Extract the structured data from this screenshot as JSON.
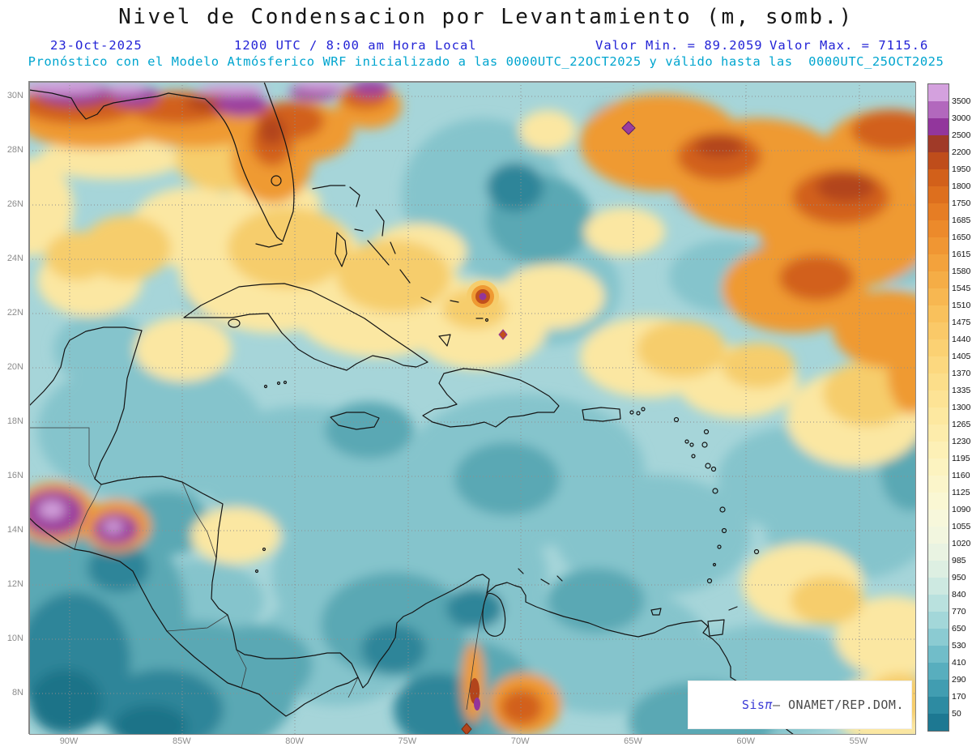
{
  "title": "Nivel de Condensacion por Levantamiento (m, somb.)",
  "header": {
    "date": "23-Oct-2025",
    "time_label": "1200 UTC / 8:00 am Hora Local",
    "valor_min": "Valor Min. = 89.2059",
    "valor_max": "Valor Max. = 7115.6",
    "forecast_line": "Pronóstico con el Modelo Atmósferico WRF inicializado a las 0000UTC_22OCT2025 y válido hasta las  0000UTC_25OCT2025"
  },
  "colors": {
    "title_text": "#161616",
    "header_blue": "#2323d6",
    "forecast_cyan": "#00a5cf",
    "axis_gray": "#8c8c8c",
    "ocean_base": "#a6d5d9"
  },
  "map": {
    "lat_ticks": [
      "30N",
      "28N",
      "26N",
      "24N",
      "22N",
      "20N",
      "18N",
      "16N",
      "14N",
      "12N",
      "10N",
      "8N"
    ],
    "lon_ticks": [
      "90W",
      "85W",
      "80W",
      "75W",
      "70W",
      "65W",
      "60W",
      "55W"
    ]
  },
  "colorbar": {
    "levels": [
      3500,
      3000,
      2500,
      2200,
      1950,
      1800,
      1750,
      1685,
      1650,
      1615,
      1580,
      1545,
      1510,
      1475,
      1440,
      1405,
      1370,
      1335,
      1300,
      1265,
      1230,
      1195,
      1160,
      1125,
      1090,
      1055,
      1020,
      985,
      950,
      840,
      770,
      650,
      530,
      410,
      290,
      170,
      50
    ],
    "colors": [
      "#d4a1de",
      "#b268bd",
      "#92369c",
      "#a03a28",
      "#bf4d1b",
      "#d2601a",
      "#dd6f1e",
      "#e67d24",
      "#ec8a2b",
      "#f09633",
      "#f3a23c",
      "#f5ad46",
      "#f7b751",
      "#f9c15c",
      "#fac968",
      "#fbd173",
      "#fcd87f",
      "#fcde8a",
      "#fde395",
      "#fde8a0",
      "#fdecab",
      "#fdf0b6",
      "#fcf3c0",
      "#fbf5ca",
      "#faf7d3",
      "#f7f7db",
      "#f2f6df",
      "#e9f3e2",
      "#ddefe2",
      "#cde9e1",
      "#b9e1de",
      "#a3d7d9",
      "#8bcbd2",
      "#71bdc9",
      "#58aebe",
      "#419db1",
      "#2d8ba2",
      "#1d7892"
    ]
  },
  "watermark": {
    "sis": "Sis",
    "pi": "π",
    "rest": "– ONAMET/REP.DOM."
  },
  "chart_data": {
    "type": "heatmap",
    "title": "Nivel de Condensacion por Levantamiento (m, somb.)",
    "units": "m",
    "date": "23-Oct-2025",
    "time": "1200 UTC / 8:00 am Hora Local",
    "value_min": 89.2059,
    "value_max": 7115.6,
    "model": "WRF",
    "initialized": "0000UTC_22OCT2025",
    "valid_until": "0000UTC_25OCT2025",
    "x_ticks": [
      "90W",
      "85W",
      "80W",
      "75W",
      "70W",
      "65W",
      "60W",
      "55W"
    ],
    "y_ticks": [
      "30N",
      "28N",
      "26N",
      "24N",
      "22N",
      "20N",
      "18N",
      "16N",
      "14N",
      "12N",
      "10N",
      "8N"
    ],
    "contour_levels": [
      50,
      170,
      290,
      410,
      530,
      650,
      770,
      840,
      950,
      985,
      1020,
      1055,
      1090,
      1125,
      1160,
      1195,
      1230,
      1265,
      1300,
      1335,
      1370,
      1405,
      1440,
      1475,
      1510,
      1545,
      1580,
      1615,
      1650,
      1685,
      1750,
      1800,
      1950,
      2200,
      2500,
      3000,
      3500
    ],
    "colorbar_position": "right",
    "grid": true,
    "region": "Caribbean / Gulf of Mexico / northern South America",
    "notable_features": [
      "Low LCL (teal, ~300-950 m) over most of the Caribbean Sea, eastern Pacific and northern South America",
      "High LCL band (orange, ~1500-2500 m) across the subtropical Atlantic in the northeast quadrant of the map",
      "Very high LCL (purple, >2500 m) in a strip along the US Gulf coast at the top edge and over the Guatemala/Chiapas highlands near 15N 90W",
      "Pale-yellow moderate LCL (~1100-1400 m) over the Bahamas, central Atlantic and east of the Lesser Antilles",
      "Isolated maximum with purple core near 22.5N 71.5W and a small purple diamond near 29N 65.5W",
      "Orange maxima over the Colombian/Venezuelan Andes near 8-10N 70-72W"
    ]
  }
}
